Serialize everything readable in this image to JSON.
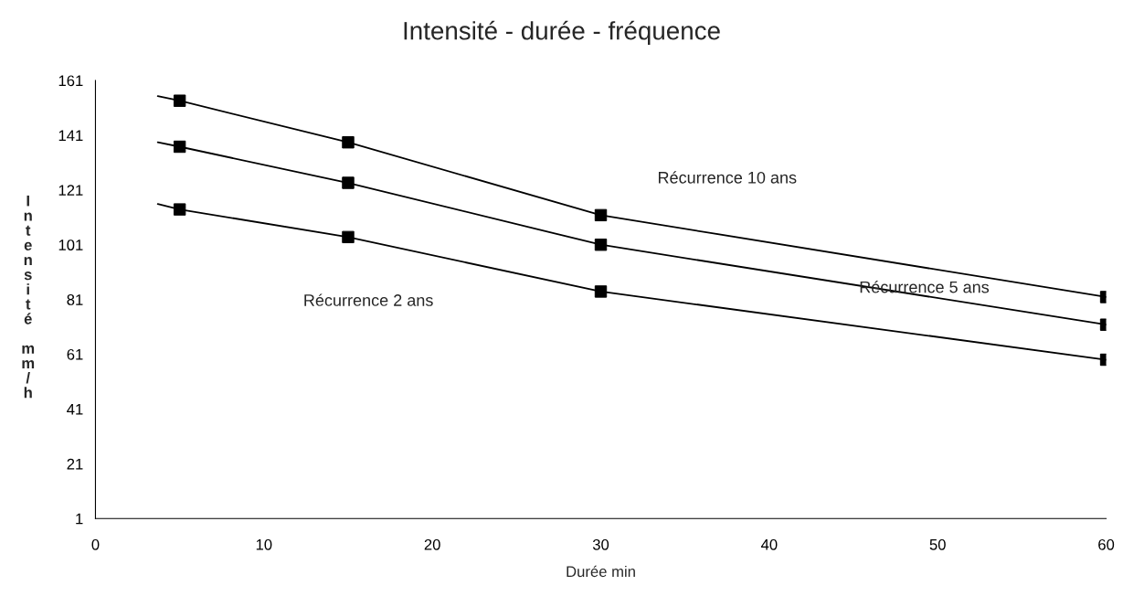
{
  "chart_data": {
    "type": "scatter",
    "title": "Intensité - durée - fréquence",
    "xlabel": "Durée min",
    "ylabel": "Intensité mm/h",
    "x": [
      5,
      15,
      30,
      60
    ],
    "series": [
      {
        "color": "#000000",
        "marker": "square",
        "values": [
          153.6,
          138.4,
          111.8,
          81.9
        ]
      },
      {
        "color": "#000000",
        "marker": "square",
        "values": [
          136.8,
          123.6,
          101,
          71.8
        ]
      },
      {
        "color": "#000000",
        "marker": "square",
        "values": [
          113.9,
          103.8,
          83.9,
          59
        ]
      },
      {
        "type": "line",
        "color": "#000000",
        "x": [
          3.7,
          5,
          15,
          30,
          60
        ],
        "values": [
          155.3,
          153.6,
          138.4,
          111.8,
          81.9
        ]
      },
      {
        "type": "line",
        "color": "#000000",
        "x": [
          3.7,
          5,
          15,
          30,
          60
        ],
        "values": [
          138.4,
          136.8,
          123.6,
          101,
          71.8
        ]
      },
      {
        "type": "line",
        "color": "#000000",
        "x": [
          3.7,
          5,
          15,
          30,
          60
        ],
        "values": [
          115.9,
          113.9,
          103.8,
          83.9,
          59
        ]
      }
    ],
    "annotations": [
      "Récurrence 10 ans",
      "Récurrence 5 ans",
      "Récurrence 2 ans"
    ],
    "line_style": "solid",
    "grid": false,
    "legend": false,
    "xlim": [
      0,
      60
    ],
    "xticks": [
      0,
      10,
      20,
      30,
      40,
      50,
      60
    ],
    "ylim": [
      1,
      161
    ],
    "yticks": [
      1,
      21,
      41,
      61,
      81,
      101,
      121,
      141,
      161
    ]
  }
}
